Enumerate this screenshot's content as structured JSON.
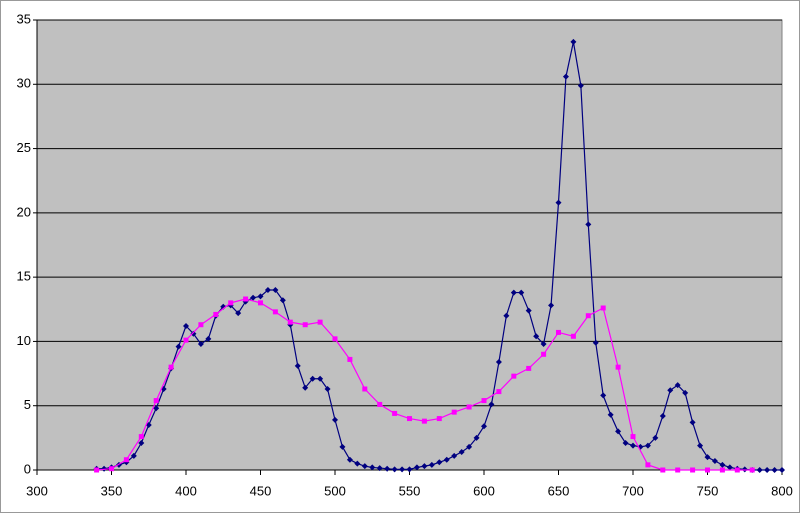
{
  "chart_data": {
    "type": "line",
    "xlim": [
      300,
      800
    ],
    "xticks": [
      300,
      350,
      400,
      450,
      500,
      550,
      600,
      650,
      700,
      750,
      800
    ],
    "ylim": [
      0,
      35
    ],
    "yticks": [
      0,
      5,
      10,
      15,
      20,
      25,
      30,
      35
    ],
    "grid": true,
    "series": [
      {
        "color": "#000080",
        "marker": "diamond",
        "x": [
          340,
          345,
          350,
          355,
          360,
          365,
          370,
          375,
          380,
          385,
          390,
          395,
          400,
          405,
          410,
          415,
          420,
          425,
          430,
          435,
          440,
          445,
          450,
          455,
          460,
          465,
          470,
          475,
          480,
          485,
          490,
          495,
          500,
          505,
          510,
          515,
          520,
          525,
          530,
          535,
          540,
          545,
          550,
          555,
          560,
          565,
          570,
          575,
          580,
          585,
          590,
          595,
          600,
          605,
          610,
          615,
          620,
          625,
          630,
          635,
          640,
          645,
          650,
          655,
          660,
          665,
          670,
          675,
          680,
          685,
          690,
          695,
          700,
          705,
          710,
          715,
          720,
          725,
          730,
          735,
          740,
          745,
          750,
          755,
          760,
          765,
          770,
          775,
          780,
          785,
          790,
          795,
          800
        ],
        "values": [
          0.1,
          0.1,
          0.2,
          0.4,
          0.6,
          1.1,
          2.1,
          3.5,
          4.8,
          6.3,
          7.9,
          9.6,
          11.2,
          10.6,
          9.8,
          10.2,
          12.0,
          12.7,
          12.8,
          12.2,
          13.1,
          13.4,
          13.5,
          14.0,
          14.0,
          13.2,
          11.3,
          8.1,
          6.4,
          7.1,
          7.1,
          6.3,
          3.9,
          1.8,
          0.8,
          0.5,
          0.3,
          0.2,
          0.15,
          0.1,
          0.05,
          0.05,
          0.05,
          0.2,
          0.3,
          0.4,
          0.6,
          0.8,
          1.1,
          1.4,
          1.8,
          2.5,
          3.4,
          5.1,
          8.4,
          12.0,
          13.8,
          13.8,
          12.4,
          10.4,
          9.8,
          12.8,
          20.8,
          30.6,
          33.3,
          29.9,
          19.1,
          9.9,
          5.8,
          4.3,
          3.0,
          2.1,
          1.9,
          1.8,
          1.9,
          2.5,
          4.2,
          6.2,
          6.6,
          6.0,
          3.7,
          1.9,
          1.0,
          0.7,
          0.4,
          0.2,
          0.1,
          0.05,
          0,
          0,
          0,
          0,
          0
        ]
      },
      {
        "color": "#ff00ff",
        "marker": "square",
        "x": [
          340,
          350,
          360,
          370,
          380,
          390,
          400,
          410,
          420,
          430,
          440,
          450,
          460,
          470,
          480,
          490,
          500,
          510,
          520,
          530,
          540,
          550,
          560,
          570,
          580,
          590,
          600,
          610,
          620,
          630,
          640,
          650,
          660,
          670,
          680,
          690,
          700,
          710,
          720,
          730,
          740,
          750,
          760,
          770,
          780
        ],
        "values": [
          0,
          0.1,
          0.8,
          2.6,
          5.4,
          8.0,
          10.1,
          11.3,
          12.1,
          13.0,
          13.3,
          13.0,
          12.3,
          11.5,
          11.3,
          11.5,
          10.2,
          8.6,
          6.3,
          5.1,
          4.4,
          4.0,
          3.8,
          4.0,
          4.5,
          4.9,
          5.4,
          6.1,
          7.3,
          7.9,
          9.0,
          10.7,
          10.4,
          12.0,
          12.6,
          8.0,
          2.6,
          0.4,
          0,
          0,
          0,
          0,
          0,
          0,
          0
        ]
      }
    ]
  }
}
